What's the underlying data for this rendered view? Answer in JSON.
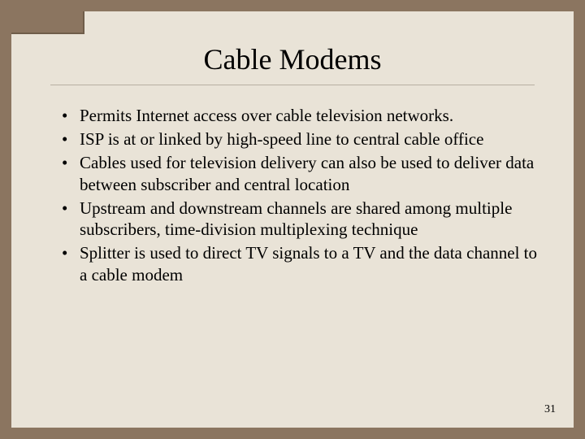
{
  "slide": {
    "title": "Cable Modems",
    "bullets": [
      "Permits Internet access over cable television networks.",
      "ISP is at or linked by high-speed line to central cable office",
      "Cables used for television delivery can also be used to deliver data between subscriber and central location",
      "Upstream and downstream channels are shared among multiple subscribers, time-division multiplexing technique",
      "Splitter is used to direct TV signals to a TV and the data channel to a cable modem"
    ],
    "page_number": "31"
  },
  "style": {
    "background_color": "#8b7560",
    "slide_color": "#e9e3d7",
    "text_color": "#000000",
    "hr_color": "#b8b0a2",
    "title_fontsize": 36,
    "bullet_fontsize": 21,
    "page_number_fontsize": 14,
    "font_family": "Times New Roman"
  }
}
